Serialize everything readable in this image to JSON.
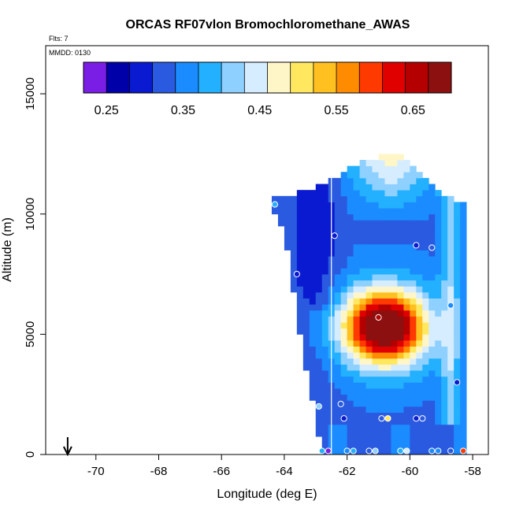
{
  "chart_data": {
    "type": "heatmap",
    "title": "ORCAS RF07vlon Bromochloromethane_AWAS",
    "flts_label": "Flts: 7",
    "mmdd_label": "MMDD: 0130",
    "xlabel": "Longitude (deg E)",
    "ylabel": "Altitude (m)",
    "xlim": [
      -71.6,
      -57.5
    ],
    "ylim": [
      0,
      17000
    ],
    "xticks": [
      -70,
      -68,
      -66,
      -64,
      -62,
      -60,
      -58
    ],
    "yticks": [
      0,
      5000,
      10000,
      15000
    ],
    "colorbar": {
      "range": [
        0.22,
        0.7
      ],
      "ticks": [
        0.25,
        0.35,
        0.45,
        0.55,
        0.65
      ],
      "tick_labels": [
        "0.25",
        "0.35",
        "0.45",
        "0.55",
        "0.65"
      ],
      "colors": [
        "#7a1ee6",
        "#0000a8",
        "#0a1ad0",
        "#2a5ae0",
        "#1a8cff",
        "#23b0ff",
        "#8ed0ff",
        "#d6ecff",
        "#fff6c8",
        "#ffe860",
        "#ffc020",
        "#ff8c00",
        "#ff3a00",
        "#e00000",
        "#b40000",
        "#8c1010"
      ]
    },
    "grid": {
      "lon_start": -64.4,
      "lon_step": 0.2,
      "alt_start": 0,
      "alt_step": 250
    },
    "vertical_line_lon": -62.5,
    "arrow_lon": -70.9,
    "shape": {
      "top_edge": [
        [
          -64.4,
          10500
        ],
        [
          -63.4,
          10800
        ],
        [
          -63.0,
          11000
        ],
        [
          -62.0,
          11700
        ],
        [
          -61.0,
          12300
        ],
        [
          -60.4,
          12400
        ],
        [
          -59.6,
          11600
        ],
        [
          -59.0,
          10800
        ],
        [
          -58.4,
          10400
        ],
        [
          -58.4,
          0
        ]
      ],
      "bottom_left": [
        [
          -64.4,
          10200
        ],
        [
          -64.0,
          9400
        ],
        [
          -63.8,
          7500
        ],
        [
          -63.5,
          5000
        ],
        [
          -63.2,
          2700
        ],
        [
          -63.0,
          1700
        ],
        [
          -62.8,
          0
        ]
      ]
    },
    "peak": {
      "lon": -60.8,
      "alt": 5300,
      "value": 0.68
    },
    "samples": [
      {
        "lon": -64.3,
        "alt": 10400,
        "value": 0.39
      },
      {
        "lon": -62.4,
        "alt": 9100,
        "value": 0.29
      },
      {
        "lon": -59.8,
        "alt": 8700,
        "value": 0.3
      },
      {
        "lon": -59.3,
        "alt": 8600,
        "value": 0.31
      },
      {
        "lon": -63.6,
        "alt": 7500,
        "value": 0.3
      },
      {
        "lon": -58.7,
        "alt": 6200,
        "value": 0.35
      },
      {
        "lon": -61.0,
        "alt": 5700,
        "value": 0.66
      },
      {
        "lon": -58.5,
        "alt": 3000,
        "value": 0.3
      },
      {
        "lon": -62.2,
        "alt": 2100,
        "value": 0.31
      },
      {
        "lon": -62.9,
        "alt": 2000,
        "value": 0.42
      },
      {
        "lon": -62.1,
        "alt": 1500,
        "value": 0.3
      },
      {
        "lon": -60.9,
        "alt": 1500,
        "value": 0.32
      },
      {
        "lon": -60.7,
        "alt": 1500,
        "value": 0.49
      },
      {
        "lon": -59.8,
        "alt": 1500,
        "value": 0.3
      },
      {
        "lon": -59.6,
        "alt": 1500,
        "value": 0.31
      },
      {
        "lon": -62.8,
        "alt": 150,
        "value": 0.38
      },
      {
        "lon": -62.6,
        "alt": 150,
        "value": 0.23
      },
      {
        "lon": -62.0,
        "alt": 150,
        "value": 0.36
      },
      {
        "lon": -61.8,
        "alt": 150,
        "value": 0.37
      },
      {
        "lon": -61.3,
        "alt": 150,
        "value": 0.33
      },
      {
        "lon": -61.1,
        "alt": 150,
        "value": 0.4
      },
      {
        "lon": -60.3,
        "alt": 150,
        "value": 0.37
      },
      {
        "lon": -60.1,
        "alt": 150,
        "value": 0.45
      },
      {
        "lon": -59.3,
        "alt": 150,
        "value": 0.36
      },
      {
        "lon": -59.1,
        "alt": 150,
        "value": 0.34
      },
      {
        "lon": -58.7,
        "alt": 150,
        "value": 0.33
      },
      {
        "lon": -58.3,
        "alt": 150,
        "value": 0.6
      }
    ]
  }
}
